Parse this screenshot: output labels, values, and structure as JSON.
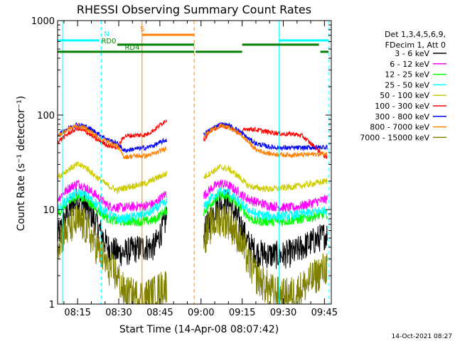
{
  "chart_data": {
    "type": "line",
    "title": "RHESSI Observing Summary Count Rates",
    "xlabel": "Start Time (14-Apr-08 08:07:42)",
    "ylabel": "Count Rate (s⁻¹ detector⁻¹)",
    "yscale": "log",
    "ylim": [
      1,
      1000
    ],
    "xlim_min": [
      487.7,
      587.5
    ],
    "x_unit": "minutes since 00:00 UT",
    "x_ticks": [
      {
        "t": 495,
        "label": "08:15"
      },
      {
        "t": 510,
        "label": "08:30"
      },
      {
        "t": 525,
        "label": "08:45"
      },
      {
        "t": 540,
        "label": "09:00"
      },
      {
        "t": 555,
        "label": "09:15"
      },
      {
        "t": 570,
        "label": "09:30"
      },
      {
        "t": 585,
        "label": "09:45"
      }
    ],
    "y_ticks": [
      {
        "v": 1,
        "label": "1"
      },
      {
        "v": 10,
        "label": "10"
      },
      {
        "v": 100,
        "label": "100"
      },
      {
        "v": 1000,
        "label": "1000"
      }
    ],
    "legend": {
      "position": "right",
      "header": [
        "Det 1,3,4,5,6,9,",
        "FDecim 1, Att 0"
      ]
    },
    "series": [
      {
        "name": "3 - 6 keV",
        "color": "#000000",
        "orbit1": {
          "t": [
            487.7,
            492,
            495,
            498,
            502,
            506,
            509.5,
            512,
            516,
            520,
            523,
            527.5
          ],
          "v": [
            5.2,
            10,
            13,
            11,
            7,
            4,
            3.5,
            3.5,
            3.8,
            4,
            4,
            8
          ]
        },
        "orbit2": {
          "t": [
            541,
            544,
            547,
            550,
            554,
            557,
            560,
            565,
            570,
            574,
            577,
            586
          ],
          "v": [
            5.5,
            9,
            12,
            12,
            7.5,
            4.5,
            3.5,
            3.3,
            3.3,
            3.5,
            4,
            5.5
          ]
        }
      },
      {
        "name": "6 - 12 keV",
        "color": "#ff00ff",
        "orbit1": {
          "t": [
            487.7,
            492,
            495,
            498,
            502,
            506,
            509.5,
            512,
            516,
            520,
            523,
            527.5
          ],
          "v": [
            13,
            17,
            19,
            17,
            14,
            11,
            10.5,
            10.5,
            10.8,
            11,
            11.5,
            15
          ]
        },
        "orbit2": {
          "t": [
            541,
            544,
            547,
            550,
            554,
            557,
            560,
            565,
            570,
            574,
            577,
            586
          ],
          "v": [
            14,
            17,
            19,
            18,
            15,
            13,
            12,
            11,
            10.5,
            10.5,
            11,
            13
          ]
        }
      },
      {
        "name": "12 - 25 keV",
        "color": "#00ff00",
        "orbit1": {
          "t": [
            487.7,
            492,
            495,
            498,
            502,
            506,
            509.5,
            512,
            516,
            520,
            523,
            527.5
          ],
          "v": [
            9,
            12,
            14,
            13,
            10,
            8,
            7.5,
            7.5,
            7.5,
            7.5,
            7.8,
            10
          ]
        },
        "orbit2": {
          "t": [
            541,
            544,
            547,
            550,
            554,
            557,
            560,
            565,
            570,
            574,
            577,
            586
          ],
          "v": [
            9.5,
            12,
            14,
            13.5,
            11,
            8.5,
            7.5,
            7.5,
            7.5,
            7.8,
            8,
            9
          ]
        }
      },
      {
        "name": "25 - 50 keV",
        "color": "#00ffff",
        "orbit1": {
          "t": [
            487.7,
            492,
            495,
            498,
            502,
            506,
            509.5,
            512,
            516,
            520,
            523,
            527.5
          ],
          "v": [
            10,
            13.5,
            15,
            14,
            11.5,
            9,
            8,
            8,
            8.5,
            9,
            10,
            12
          ]
        },
        "orbit2": {
          "t": [
            541,
            544,
            547,
            550,
            554,
            557,
            560,
            565,
            570,
            574,
            577,
            586
          ],
          "v": [
            10.5,
            13.5,
            15.5,
            15,
            12,
            10,
            9,
            8.5,
            8.5,
            8.8,
            9,
            10
          ]
        }
      },
      {
        "name": "50 - 100 keV",
        "color": "#cccc00",
        "orbit1": {
          "t": [
            487.7,
            492,
            495,
            498,
            502,
            506,
            509.5,
            512,
            516,
            520,
            523,
            527.5
          ],
          "v": [
            22,
            27,
            30,
            28,
            22,
            18,
            16,
            17,
            18,
            19,
            21,
            24
          ]
        },
        "orbit2": {
          "t": [
            541,
            544,
            547,
            550,
            554,
            557,
            560,
            565,
            570,
            574,
            577,
            586
          ],
          "v": [
            22,
            25,
            28,
            27,
            22,
            18,
            17,
            16.5,
            17,
            17.5,
            18,
            20
          ]
        }
      },
      {
        "name": "100 - 300 keV",
        "color": "#ff0000",
        "orbit1": {
          "t": [
            487.7,
            492,
            495,
            498,
            502,
            506,
            509.5,
            512,
            516,
            520,
            523,
            527.5
          ],
          "v": [
            52,
            65,
            72,
            67,
            55,
            48,
            45,
            60,
            61,
            62,
            70,
            90
          ]
        },
        "orbit2": {
          "t": [
            541,
            544,
            547,
            550,
            554,
            557,
            560,
            565,
            570,
            574,
            577,
            586
          ],
          "v": [
            55,
            70,
            78,
            75,
            64,
            72,
            70,
            66,
            63,
            63,
            60,
            35
          ]
        }
      },
      {
        "name": "300 - 800 keV",
        "color": "#0000ff",
        "orbit1": {
          "t": [
            487.7,
            492,
            495,
            498,
            502,
            506,
            509.5,
            512,
            516,
            520,
            523,
            527.5
          ],
          "v": [
            62,
            74,
            80,
            76,
            65,
            55,
            50,
            42,
            44,
            45,
            48,
            55
          ]
        },
        "orbit2": {
          "t": [
            541,
            544,
            547,
            550,
            554,
            557,
            560,
            565,
            570,
            574,
            577,
            586
          ],
          "v": [
            62,
            72,
            80,
            78,
            68,
            57,
            50,
            46,
            45,
            45,
            45,
            46
          ]
        }
      },
      {
        "name": "800 - 7000 keV",
        "color": "#ff8000",
        "orbit1": {
          "t": [
            487.7,
            492,
            495,
            498,
            502,
            506,
            509.5,
            512,
            516,
            520,
            523,
            527.5
          ],
          "v": [
            60,
            72,
            77,
            72,
            60,
            52,
            47,
            36,
            37,
            37,
            39,
            45
          ]
        },
        "orbit2": {
          "t": [
            541,
            544,
            547,
            550,
            554,
            557,
            560,
            565,
            570,
            574,
            577,
            586
          ],
          "v": [
            60,
            70,
            77,
            74,
            64,
            53,
            43,
            39,
            38,
            38,
            38,
            39
          ]
        }
      },
      {
        "name": "7000 - 15000 keV",
        "color": "#808000",
        "orbit1": {
          "t": [
            487.7,
            492,
            495,
            498,
            502,
            506,
            509.5,
            512,
            516,
            520,
            523,
            527.5
          ],
          "v": [
            4.5,
            6.5,
            7.5,
            6.5,
            4,
            2.5,
            2,
            1.3,
            1.2,
            1.2,
            1.3,
            1.6
          ]
        },
        "orbit2": {
          "t": [
            541,
            544,
            547,
            550,
            554,
            557,
            560,
            565,
            570,
            574,
            577,
            586
          ],
          "v": [
            5,
            7,
            8,
            7.5,
            5,
            3,
            2,
            1.4,
            1.2,
            1.3,
            1.5,
            2.5
          ]
        }
      }
    ],
    "markers": [
      {
        "kind": "vline",
        "t": 489.5,
        "color": "#00ffff",
        "style": "solid"
      },
      {
        "kind": "vline",
        "t": 503.6,
        "color": "#00ffff",
        "style": "dashed"
      },
      {
        "kind": "vline",
        "t": 518.5,
        "color": "#ff8000",
        "style": "solid"
      },
      {
        "kind": "vline",
        "t": 537.5,
        "color": "#ff8000",
        "style": "dashed"
      },
      {
        "kind": "vline",
        "t": 568.5,
        "color": "#00ffff",
        "style": "solid"
      },
      {
        "kind": "vline",
        "t": 586.7,
        "color": "#00ffff",
        "style": "dashed"
      }
    ],
    "flag_bars": [
      {
        "label": "N",
        "color": "#00ffff",
        "y_frac": 0.14,
        "segments": [
          [
            487.7,
            503.0
          ],
          [
            568.5,
            586.5
          ]
        ]
      },
      {
        "label": "S",
        "color": "#ff8000",
        "y_frac": 0.1,
        "segments": [
          [
            518.5,
            537.5
          ]
        ]
      },
      {
        "label": "RD0",
        "color": "#008000",
        "y_frac": 0.17,
        "segments": [
          [
            509.5,
            537.5
          ],
          [
            555,
            583
          ]
        ]
      },
      {
        "label": "RD4",
        "color": "#008000",
        "y_frac": 0.22,
        "segments": [
          [
            487.7,
            537.5
          ],
          [
            538,
            555
          ],
          [
            583.5,
            586.5
          ]
        ]
      }
    ],
    "gap": [
      537.5,
      540.5
    ]
  },
  "footer": {
    "timestamp": "14-Oct-2021 08:27"
  }
}
